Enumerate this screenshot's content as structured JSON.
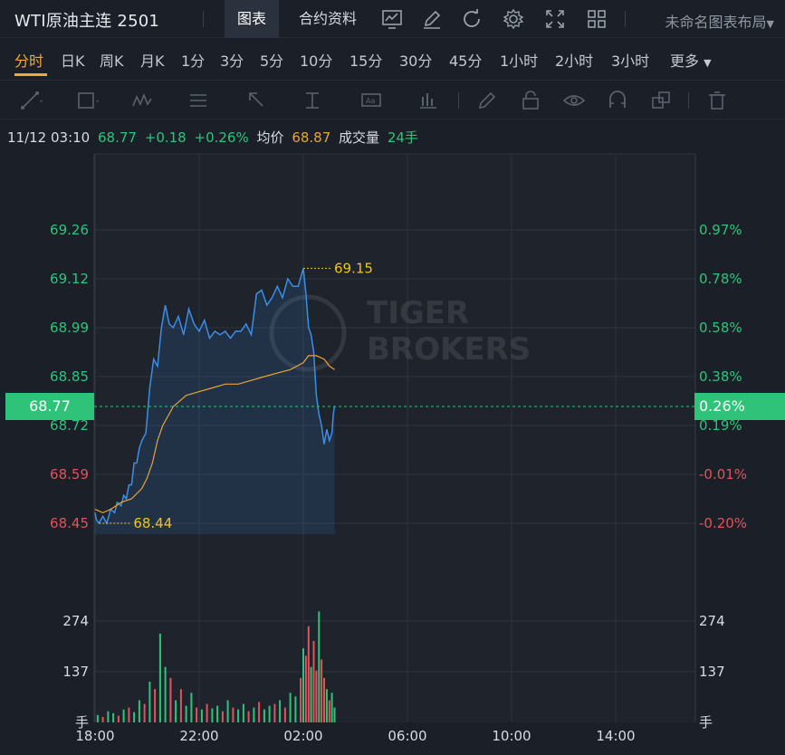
{
  "header": {
    "title": "WTI原油主连 2501",
    "tabs": [
      "图表",
      "合约资料"
    ],
    "active_tab": 0,
    "layout_label": "未命名图表布局"
  },
  "periods": {
    "items": [
      "分时",
      "日K",
      "周K",
      "月K",
      "1分",
      "3分",
      "5分",
      "10分",
      "15分",
      "30分",
      "45分",
      "1小时",
      "2小时",
      "3小时",
      "更多"
    ],
    "active": 0
  },
  "info": {
    "datetime": "11/12 03:10",
    "price": "68.77",
    "change": "+0.18",
    "change_pct": "+0.26%",
    "avg_label": "均价",
    "avg_value": "68.87",
    "volume_label": "成交量",
    "volume_value": "24手"
  },
  "current_price_tag": {
    "left": "68.77",
    "right": "0.26%"
  },
  "watermark": {
    "line1": "TIGER",
    "line2": "BROKERS"
  },
  "colors": {
    "up": "#2fc37a",
    "down": "#e0535a",
    "price_line": "#3b8ee8",
    "avg_line": "#e8a23a",
    "label_yellow": "#f0c419"
  },
  "chart_data": {
    "type": "line",
    "x_ticks": [
      "18:00",
      "22:00",
      "02:00",
      "06:00",
      "10:00",
      "14:00"
    ],
    "y_left_ticks": [
      "69.26",
      "69.12",
      "68.99",
      "68.85",
      "68.72",
      "68.59",
      "68.45"
    ],
    "y_right_ticks": [
      "0.97%",
      "0.78%",
      "0.58%",
      "0.38%",
      "0.19%",
      "-0.01%",
      "-0.20%"
    ],
    "ylim": [
      68.43,
      69.26
    ],
    "high_label": "69.15",
    "low_label": "68.44",
    "volume_ticks": [
      "274",
      "137"
    ],
    "volume_unit": "手",
    "series": [
      {
        "x": [
          0.0,
          0.05,
          0.15,
          0.3,
          0.45,
          0.6,
          0.75,
          0.85,
          1.0,
          1.1,
          1.2,
          1.3,
          1.4,
          1.5,
          1.6,
          1.7,
          1.8,
          1.95,
          2.1,
          2.25,
          2.4,
          2.55,
          2.7,
          2.85,
          3.0,
          3.2,
          3.4,
          3.6,
          3.8,
          4.0,
          4.2,
          4.4,
          4.6,
          4.8,
          5.0,
          5.2,
          5.4,
          5.6,
          5.8,
          6.0,
          6.2,
          6.4,
          6.6,
          6.8,
          7.0,
          7.2,
          7.4,
          7.6,
          7.8,
          8.0,
          8.1,
          8.2,
          8.3,
          8.4,
          8.5,
          8.6,
          8.7,
          8.8,
          8.9,
          9.0,
          9.1,
          9.15,
          9.2
        ],
        "y": [
          68.48,
          68.46,
          68.45,
          68.47,
          68.45,
          68.49,
          68.48,
          68.51,
          68.5,
          68.53,
          68.52,
          68.56,
          68.56,
          68.62,
          68.62,
          68.66,
          68.68,
          68.7,
          68.82,
          68.9,
          68.88,
          68.99,
          69.05,
          69.0,
          68.99,
          69.02,
          68.97,
          69.04,
          69.0,
          68.98,
          69.01,
          68.96,
          68.98,
          68.97,
          68.98,
          68.96,
          68.98,
          68.98,
          69.0,
          68.97,
          69.08,
          69.09,
          69.05,
          69.07,
          69.1,
          69.07,
          69.12,
          69.1,
          69.1,
          69.15,
          69.08,
          68.99,
          68.97,
          68.92,
          68.8,
          68.75,
          68.72,
          68.67,
          68.71,
          68.68,
          68.7,
          68.75,
          68.77
        ]
      },
      {
        "x": [
          0.0,
          0.3,
          0.6,
          1.0,
          1.4,
          1.8,
          2.0,
          2.2,
          2.4,
          2.6,
          3.0,
          3.5,
          4.0,
          4.5,
          5.0,
          5.5,
          6.0,
          6.5,
          7.0,
          7.5,
          8.0,
          8.2,
          8.5,
          8.8,
          9.0,
          9.2
        ],
        "y": [
          68.49,
          68.48,
          68.49,
          68.51,
          68.52,
          68.55,
          68.58,
          68.62,
          68.68,
          68.72,
          68.77,
          68.8,
          68.81,
          68.82,
          68.83,
          68.83,
          68.84,
          68.85,
          68.86,
          68.87,
          68.89,
          68.91,
          68.91,
          68.9,
          68.88,
          68.87
        ]
      }
    ],
    "volume": {
      "x": [
        0.1,
        0.3,
        0.5,
        0.7,
        0.9,
        1.1,
        1.3,
        1.5,
        1.7,
        1.9,
        2.1,
        2.3,
        2.5,
        2.7,
        2.9,
        3.1,
        3.3,
        3.5,
        3.7,
        3.9,
        4.1,
        4.3,
        4.5,
        4.7,
        4.9,
        5.1,
        5.3,
        5.5,
        5.7,
        5.9,
        6.1,
        6.3,
        6.5,
        6.7,
        6.9,
        7.1,
        7.3,
        7.5,
        7.7,
        7.9,
        8.0,
        8.1,
        8.2,
        8.3,
        8.4,
        8.5,
        8.6,
        8.7,
        8.8,
        8.9,
        9.0,
        9.1,
        9.2
      ],
      "v": [
        20,
        15,
        30,
        25,
        18,
        35,
        40,
        28,
        60,
        50,
        110,
        90,
        240,
        150,
        120,
        60,
        90,
        45,
        80,
        40,
        35,
        50,
        38,
        45,
        30,
        60,
        40,
        35,
        50,
        30,
        40,
        55,
        35,
        45,
        50,
        60,
        40,
        80,
        70,
        120,
        200,
        180,
        260,
        150,
        220,
        140,
        300,
        170,
        120,
        90,
        60,
        80,
        40
      ],
      "dir": [
        "u",
        "d",
        "u",
        "u",
        "d",
        "u",
        "d",
        "u",
        "u",
        "d",
        "u",
        "d",
        "u",
        "u",
        "d",
        "u",
        "d",
        "u",
        "u",
        "d",
        "u",
        "d",
        "u",
        "u",
        "d",
        "u",
        "d",
        "u",
        "u",
        "d",
        "u",
        "d",
        "u",
        "u",
        "d",
        "u",
        "d",
        "u",
        "u",
        "d",
        "u",
        "d",
        "d",
        "u",
        "d",
        "d",
        "u",
        "d",
        "d",
        "u",
        "d",
        "u",
        "u"
      ]
    }
  }
}
